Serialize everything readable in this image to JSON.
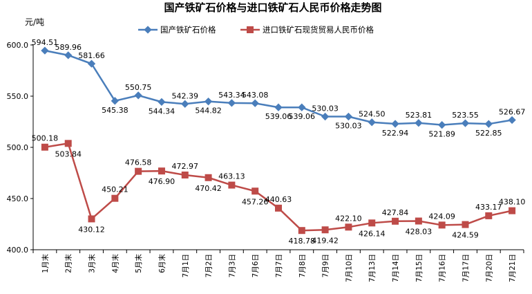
{
  "chart_data": {
    "type": "line",
    "title": "国产铁矿石价格与进口铁矿石人民币价格走势图",
    "ylabel": "元/吨",
    "ylim": [
      400,
      600
    ],
    "yticks": [
      "400.0",
      "450.0",
      "500.0",
      "550.0",
      "600.0"
    ],
    "grid": false,
    "legend_position": "top",
    "categories": [
      "1月末",
      "2月末",
      "3月末",
      "4月末",
      "5月末",
      "6月末",
      "7月1日",
      "7月2日",
      "7月3日",
      "7月6日",
      "7月7日",
      "7月8日",
      "7月9日",
      "7月10日",
      "7月13日",
      "7月14日",
      "7月15日",
      "7月16日",
      "7月17日",
      "7月20日",
      "7月21日"
    ],
    "series": [
      {
        "name": "国产铁矿石价格",
        "color": "#4a7ebb",
        "marker": "diamond",
        "values": [
          594.51,
          589.96,
          581.66,
          545.38,
          550.75,
          544.34,
          542.39,
          544.82,
          543.34,
          543.08,
          539.06,
          539.06,
          530.03,
          530.03,
          524.5,
          522.94,
          523.81,
          521.89,
          523.55,
          522.85,
          526.67
        ],
        "labels": [
          "594.51",
          "589.96",
          "581.66",
          "545.38",
          "550.75",
          "544.34",
          "542.39",
          "544.82",
          "543.34",
          "543.08",
          "539.06",
          "539.06",
          "530.03",
          "530.03",
          "524.50",
          "522.94",
          "523.81",
          "521.89",
          "523.55",
          "522.85",
          "526.67"
        ]
      },
      {
        "name": "进口铁矿石现货贸易人民币价格",
        "color": "#be4b48",
        "marker": "square",
        "values": [
          500.18,
          503.84,
          430.12,
          450.21,
          476.58,
          476.9,
          472.97,
          470.42,
          463.13,
          457.26,
          440.63,
          418.78,
          419.42,
          422.1,
          426.14,
          427.84,
          428.03,
          424.09,
          424.59,
          433.17,
          438.1
        ],
        "labels": [
          "500.18",
          "503.84",
          "430.12",
          "450.21",
          "476.58",
          "476.90",
          "472.97",
          "470.42",
          "463.13",
          "457.26",
          "440.63",
          "418.78",
          "419.42",
          "422.10",
          "426.14",
          "427.84",
          "428.03",
          "424.09",
          "424.59",
          "433.17",
          "438.10"
        ]
      }
    ]
  }
}
